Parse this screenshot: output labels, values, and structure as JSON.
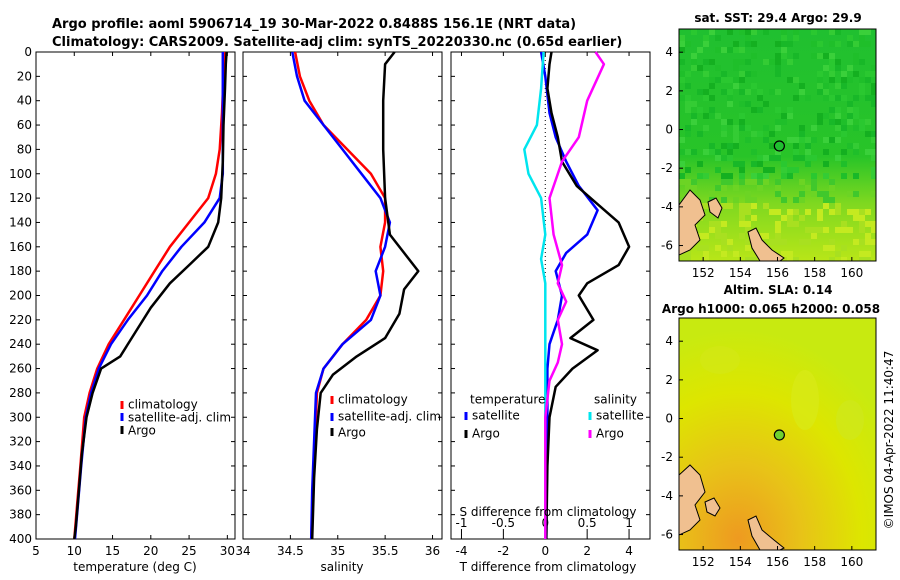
{
  "title": {
    "line1": "Argo profile: aoml 5906714_19 30-Mar-2022 0.8488S 156.1E (NRT data)",
    "line2": "Climatology: CARS2009. Satellite-adj clim: synTS_20220330.nc (0.65d earlier)"
  },
  "credit": "©IMOS 04-Apr-2022 11:40:47",
  "colors": {
    "climatology": "#ff0000",
    "satellite": "#0000ff",
    "argo": "#000000",
    "sat_salinity": "#00e5ee",
    "argo_salinity": "#ff00ff",
    "land": "#f0c090",
    "sst_green": "#22cc22",
    "sla_yellow": "#e8e000"
  },
  "depth_ticks": [
    0,
    20,
    40,
    60,
    80,
    100,
    120,
    140,
    160,
    180,
    200,
    220,
    240,
    260,
    280,
    300,
    320,
    340,
    360,
    380,
    400
  ],
  "chart_data": [
    {
      "id": "temperature",
      "type": "line",
      "xlabel": "temperature (deg C)",
      "ylabel": "depth",
      "xlim": [
        5,
        31
      ],
      "ylim": [
        400,
        0
      ],
      "xticks": [
        5,
        10,
        15,
        20,
        25,
        30
      ],
      "legend": [
        "climatology",
        "satellite-adj. clim",
        "Argo"
      ],
      "series": [
        {
          "name": "climatology",
          "color": "#ff0000",
          "points": [
            [
              29.6,
              0
            ],
            [
              29.5,
              20
            ],
            [
              29.3,
              50
            ],
            [
              29.0,
              80
            ],
            [
              28.5,
              100
            ],
            [
              27.5,
              120
            ],
            [
              25.0,
              140
            ],
            [
              22.5,
              160
            ],
            [
              20.5,
              180
            ],
            [
              18.5,
              200
            ],
            [
              16.5,
              220
            ],
            [
              14.5,
              240
            ],
            [
              13.0,
              260
            ],
            [
              12.0,
              280
            ],
            [
              11.3,
              300
            ],
            [
              10.8,
              340
            ],
            [
              10.4,
              370
            ],
            [
              10.0,
              400
            ]
          ]
        },
        {
          "name": "satellite-adj. clim",
          "color": "#0000ff",
          "points": [
            [
              29.4,
              0
            ],
            [
              29.4,
              20
            ],
            [
              29.4,
              50
            ],
            [
              29.4,
              80
            ],
            [
              29.4,
              100
            ],
            [
              29.0,
              120
            ],
            [
              27.0,
              140
            ],
            [
              24.0,
              160
            ],
            [
              21.5,
              180
            ],
            [
              19.5,
              200
            ],
            [
              17.0,
              220
            ],
            [
              14.8,
              240
            ],
            [
              13.2,
              260
            ],
            [
              12.2,
              280
            ],
            [
              11.5,
              300
            ],
            [
              10.9,
              340
            ],
            [
              10.5,
              370
            ],
            [
              10.1,
              400
            ]
          ]
        },
        {
          "name": "Argo",
          "color": "#000000",
          "points": [
            [
              29.9,
              0
            ],
            [
              29.8,
              10
            ],
            [
              29.7,
              30
            ],
            [
              29.5,
              60
            ],
            [
              29.4,
              90
            ],
            [
              29.2,
              120
            ],
            [
              28.8,
              140
            ],
            [
              27.5,
              160
            ],
            [
              25.0,
              175
            ],
            [
              22.5,
              190
            ],
            [
              20.0,
              210
            ],
            [
              18.0,
              230
            ],
            [
              16.0,
              250
            ],
            [
              13.5,
              260
            ],
            [
              12.4,
              280
            ],
            [
              11.6,
              300
            ],
            [
              11.0,
              330
            ],
            [
              10.6,
              360
            ],
            [
              10.2,
              390
            ],
            [
              10.0,
              400
            ]
          ]
        }
      ]
    },
    {
      "id": "salinity",
      "type": "line",
      "xlabel": "salinity",
      "ylabel": "depth",
      "xlim": [
        34.0,
        36.1
      ],
      "ylim": [
        400,
        0
      ],
      "xticks": [
        34,
        34.5,
        35,
        35.5,
        36
      ],
      "legend": [
        "climatology",
        "satellite-adj. clim",
        "Argo"
      ],
      "series": [
        {
          "name": "climatology",
          "color": "#ff0000",
          "points": [
            [
              34.55,
              0
            ],
            [
              34.6,
              20
            ],
            [
              34.7,
              40
            ],
            [
              34.85,
              60
            ],
            [
              35.1,
              80
            ],
            [
              35.35,
              100
            ],
            [
              35.5,
              120
            ],
            [
              35.5,
              140
            ],
            [
              35.45,
              160
            ],
            [
              35.48,
              180
            ],
            [
              35.45,
              200
            ],
            [
              35.3,
              220
            ],
            [
              35.05,
              240
            ],
            [
              34.85,
              260
            ],
            [
              34.78,
              280
            ],
            [
              34.76,
              320
            ],
            [
              34.74,
              360
            ],
            [
              34.72,
              400
            ]
          ]
        },
        {
          "name": "satellite-adj. clim",
          "color": "#0000ff",
          "points": [
            [
              34.52,
              0
            ],
            [
              34.57,
              20
            ],
            [
              34.65,
              40
            ],
            [
              34.85,
              60
            ],
            [
              35.05,
              80
            ],
            [
              35.25,
              100
            ],
            [
              35.45,
              120
            ],
            [
              35.55,
              140
            ],
            [
              35.5,
              160
            ],
            [
              35.4,
              180
            ],
            [
              35.45,
              200
            ],
            [
              35.35,
              220
            ],
            [
              35.05,
              240
            ],
            [
              34.85,
              260
            ],
            [
              34.77,
              280
            ],
            [
              34.75,
              320
            ],
            [
              34.73,
              360
            ],
            [
              34.72,
              400
            ]
          ]
        },
        {
          "name": "Argo",
          "color": "#000000",
          "points": [
            [
              35.6,
              0
            ],
            [
              35.5,
              10
            ],
            [
              35.48,
              40
            ],
            [
              35.48,
              80
            ],
            [
              35.5,
              120
            ],
            [
              35.55,
              150
            ],
            [
              35.7,
              165
            ],
            [
              35.85,
              180
            ],
            [
              35.7,
              195
            ],
            [
              35.65,
              215
            ],
            [
              35.5,
              235
            ],
            [
              35.2,
              250
            ],
            [
              34.95,
              265
            ],
            [
              34.82,
              280
            ],
            [
              34.78,
              310
            ],
            [
              34.75,
              350
            ],
            [
              34.73,
              400
            ]
          ]
        }
      ]
    },
    {
      "id": "difference",
      "type": "line",
      "xlabel": "T difference from climatology",
      "xlabel_top": "S difference from climatology",
      "xlim": [
        -4.5,
        5
      ],
      "ylim": [
        400,
        0
      ],
      "xticks": [
        -4,
        -2,
        0,
        2,
        4
      ],
      "s_xticks": [
        -1,
        -0.5,
        0,
        0.5,
        1
      ],
      "legend_temperature_title": "temperature",
      "legend_salinity_title": "salinity",
      "legend_temperature": [
        "satellite",
        "Argo"
      ],
      "legend_salinity": [
        "satellite",
        "Argo"
      ],
      "series": [
        {
          "name": "T satellite",
          "color": "#0000ff",
          "points": [
            [
              -0.2,
              0
            ],
            [
              0,
              20
            ],
            [
              0.2,
              50
            ],
            [
              0.5,
              70
            ],
            [
              1.0,
              90
            ],
            [
              1.6,
              110
            ],
            [
              2.5,
              130
            ],
            [
              2.0,
              150
            ],
            [
              1.0,
              165
            ],
            [
              0.5,
              180
            ],
            [
              0.8,
              200
            ],
            [
              0.6,
              220
            ],
            [
              0.2,
              240
            ],
            [
              0.1,
              260
            ],
            [
              0.1,
              300
            ],
            [
              0.05,
              400
            ]
          ]
        },
        {
          "name": "T Argo",
          "color": "#000000",
          "points": [
            [
              0.3,
              0
            ],
            [
              0.2,
              10
            ],
            [
              0.1,
              30
            ],
            [
              0.3,
              50
            ],
            [
              0.6,
              70
            ],
            [
              0.8,
              90
            ],
            [
              1.5,
              110
            ],
            [
              2.5,
              125
            ],
            [
              3.5,
              140
            ],
            [
              4.0,
              160
            ],
            [
              3.5,
              175
            ],
            [
              2.0,
              190
            ],
            [
              1.6,
              200
            ],
            [
              2.3,
              220
            ],
            [
              1.2,
              235
            ],
            [
              2.5,
              245
            ],
            [
              1.3,
              260
            ],
            [
              0.5,
              275
            ],
            [
              0.2,
              300
            ],
            [
              0.1,
              340
            ],
            [
              0.05,
              400
            ]
          ]
        },
        {
          "name": "S satellite",
          "color": "#00e5ee",
          "points": [
            [
              -0.02,
              0
            ],
            [
              -0.05,
              30
            ],
            [
              -0.1,
              60
            ],
            [
              -0.25,
              80
            ],
            [
              -0.2,
              100
            ],
            [
              -0.05,
              120
            ],
            [
              0,
              150
            ],
            [
              -0.05,
              170
            ],
            [
              0,
              190
            ],
            [
              0,
              230
            ],
            [
              0,
              400
            ]
          ]
        },
        {
          "name": "S Argo",
          "color": "#ff00ff",
          "points": [
            [
              0.6,
              0
            ],
            [
              0.7,
              10
            ],
            [
              0.5,
              40
            ],
            [
              0.4,
              70
            ],
            [
              0.2,
              90
            ],
            [
              0.05,
              120
            ],
            [
              0.1,
              150
            ],
            [
              0.2,
              175
            ],
            [
              0.15,
              190
            ],
            [
              0.25,
              205
            ],
            [
              0.15,
              220
            ],
            [
              0.2,
              240
            ],
            [
              0.15,
              255
            ],
            [
              0.05,
              270
            ],
            [
              0,
              300
            ],
            [
              0,
              400
            ]
          ]
        }
      ]
    },
    {
      "id": "sst_map",
      "type": "heatmap",
      "title": "sat. SST: 29.4 Argo: 29.9",
      "xticks": [
        152,
        154,
        156,
        158,
        160
      ],
      "yticks": [
        4,
        2,
        0,
        -2,
        -4,
        -6
      ],
      "xlim": [
        150.7,
        161.3
      ],
      "ylim": [
        -6.8,
        5.2
      ],
      "marker": {
        "lon": 156.1,
        "lat": -0.85
      }
    },
    {
      "id": "sla_map",
      "type": "heatmap",
      "title": "Altim. SLA: 0.14",
      "subtitle": "Argo h1000: 0.065 h2000: 0.058",
      "xticks": [
        152,
        154,
        156,
        158,
        160
      ],
      "yticks": [
        4,
        2,
        0,
        -2,
        -4,
        -6
      ],
      "xlim": [
        150.7,
        161.3
      ],
      "ylim": [
        -6.8,
        5.2
      ],
      "marker": {
        "lon": 156.1,
        "lat": -0.85
      }
    }
  ]
}
